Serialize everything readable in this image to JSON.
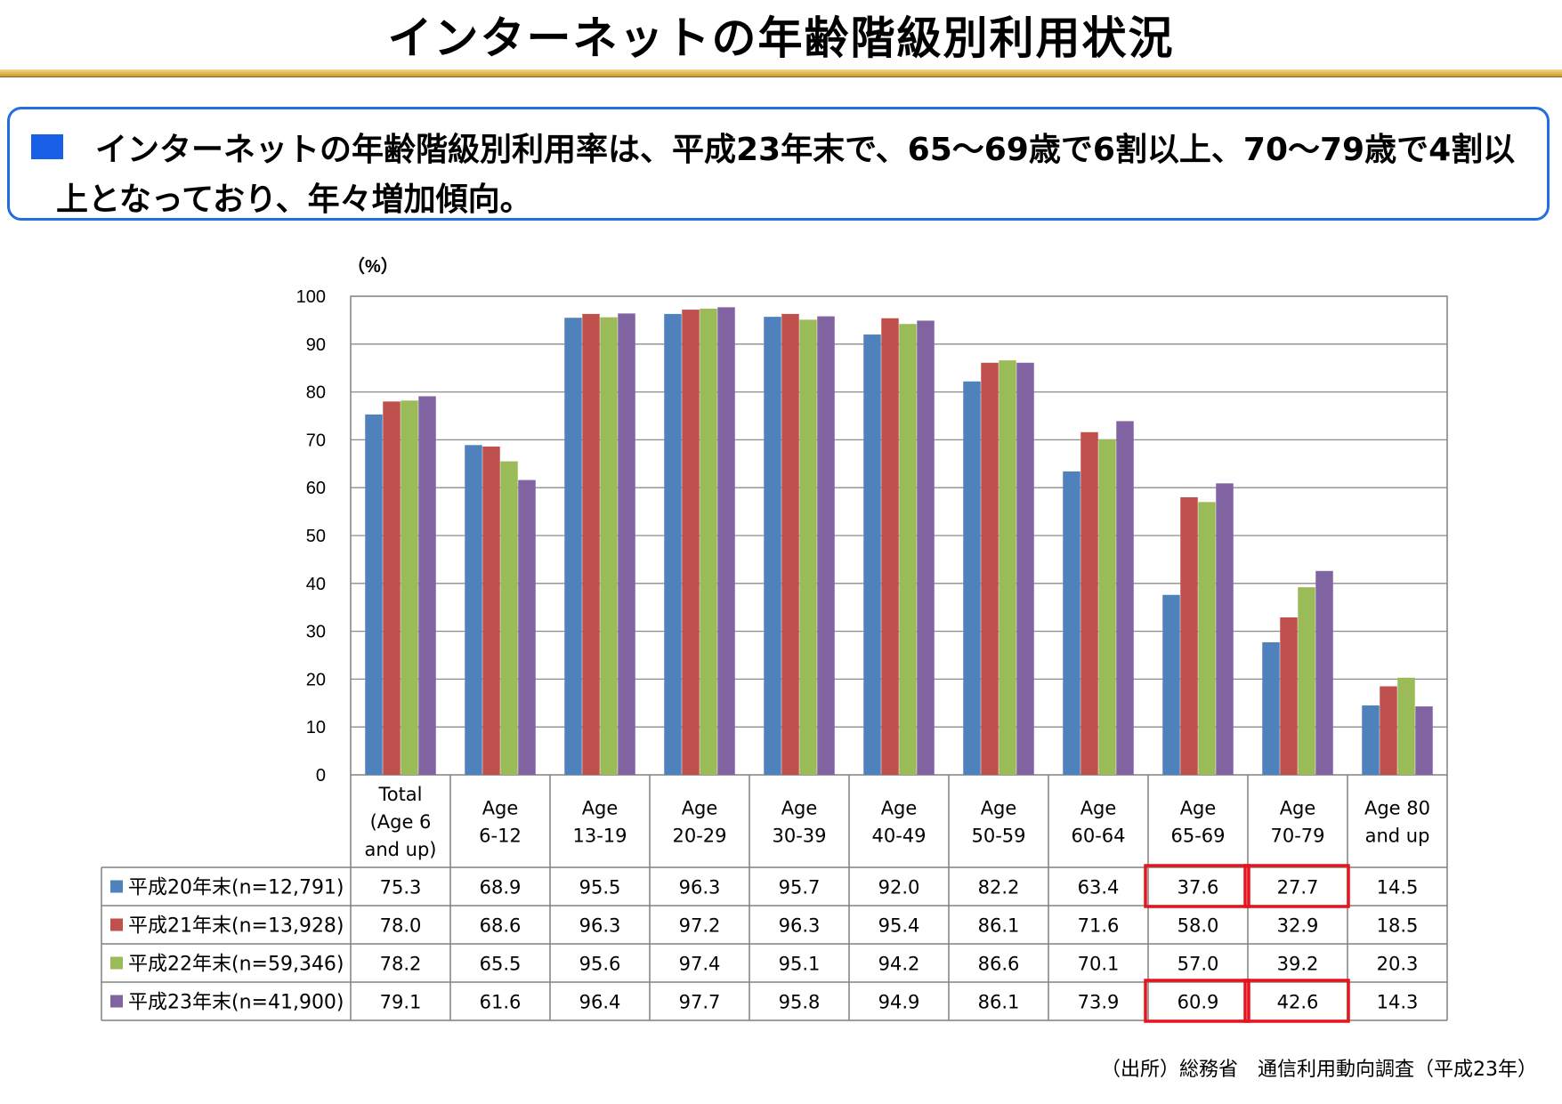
{
  "title": "インターネットの年齢階級別利用状況",
  "summary": "インターネットの年齢階級別利用率は、平成23年末で、65〜69歳で6割以上、70〜79歳で4割以上となっており、年々増加傾向。",
  "source": "（出所）総務省　通信利用動向調査（平成23年）",
  "colors": {
    "accent": "#1f6fe5",
    "highlight": "#e8141d"
  },
  "chart_data": {
    "type": "bar",
    "unit_label": "（%）",
    "ylim": [
      0,
      100
    ],
    "yticks": [
      0,
      10,
      20,
      30,
      40,
      50,
      60,
      70,
      80,
      90,
      100
    ],
    "grid": true,
    "legend_placement": "table-left",
    "categories": [
      [
        "Total",
        "(Age 6",
        "and up)"
      ],
      [
        "Age",
        "6-12"
      ],
      [
        "Age",
        "13-19"
      ],
      [
        "Age",
        "20-29"
      ],
      [
        "Age",
        "30-39"
      ],
      [
        "Age",
        "40-49"
      ],
      [
        "Age",
        "50-59"
      ],
      [
        "Age",
        "60-64"
      ],
      [
        "Age",
        "65-69"
      ],
      [
        "Age",
        "70-79"
      ],
      [
        "Age 80",
        "and up"
      ]
    ],
    "series": [
      {
        "name": "平成20年末(n=12,791)",
        "color": "#4f81bd",
        "values": [
          "75.3",
          "68.9",
          "95.5",
          "96.3",
          "95.7",
          "92.0",
          "82.2",
          "63.4",
          "37.6",
          "27.7",
          "14.5"
        ]
      },
      {
        "name": "平成21年末(n=13,928)",
        "color": "#c0504d",
        "values": [
          "78.0",
          "68.6",
          "96.3",
          "97.2",
          "96.3",
          "95.4",
          "86.1",
          "71.6",
          "58.0",
          "32.9",
          "18.5"
        ]
      },
      {
        "name": "平成22年末(n=59,346)",
        "color": "#9bbb59",
        "values": [
          "78.2",
          "65.5",
          "95.6",
          "97.4",
          "95.1",
          "94.2",
          "86.6",
          "70.1",
          "57.0",
          "39.2",
          "20.3"
        ]
      },
      {
        "name": "平成23年末(n=41,900)",
        "color": "#8064a2",
        "values": [
          "79.1",
          "61.6",
          "96.4",
          "97.7",
          "95.8",
          "94.9",
          "86.1",
          "73.9",
          "60.9",
          "42.6",
          "14.3"
        ]
      }
    ],
    "highlighted_cells": [
      {
        "series": 0,
        "category": 8
      },
      {
        "series": 0,
        "category": 9
      },
      {
        "series": 3,
        "category": 8
      },
      {
        "series": 3,
        "category": 9
      }
    ]
  }
}
